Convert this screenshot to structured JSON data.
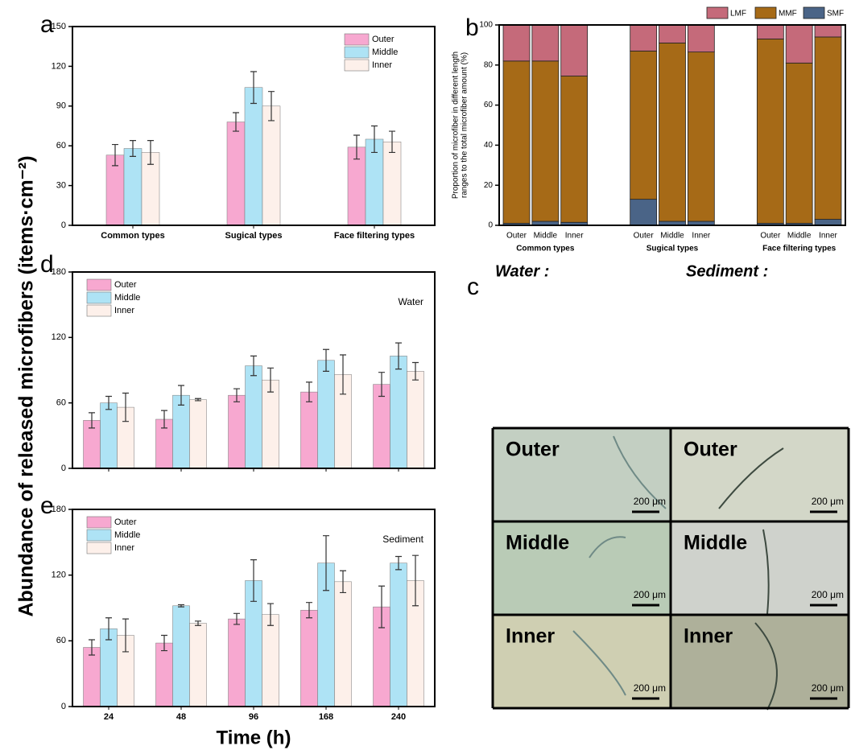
{
  "panel_labels": [
    "a",
    "b",
    "c",
    "d",
    "e"
  ],
  "shared_y_label": "Abundance of released microfibers (items·cm⁻²)",
  "shared_x_label": "Time (h)",
  "chart_data": [
    {
      "type": "grouped_bar",
      "categories": [
        "Common types",
        "Sugical types",
        "Face filtering types"
      ],
      "series": [
        {
          "name": "Outer",
          "color": "#f7a8d0",
          "values": [
            53,
            78,
            59
          ],
          "errors": [
            8,
            7,
            9
          ]
        },
        {
          "name": "Middle",
          "color": "#aee3f5",
          "values": [
            58,
            104,
            65
          ],
          "errors": [
            6,
            12,
            10
          ]
        },
        {
          "name": "Inner",
          "color": "#fdf0ea",
          "values": [
            55,
            90,
            63
          ],
          "errors": [
            9,
            11,
            8
          ]
        }
      ],
      "ylim": [
        0,
        150
      ],
      "yticks": [
        0,
        30,
        60,
        90,
        120,
        150
      ],
      "legend": "upper right"
    },
    {
      "type": "stacked_bar",
      "ylabel": [
        "Proportion of microfiber in different length",
        "ranges to the total microfiber amount (%)"
      ],
      "categories": [
        "Outer",
        "Middle",
        "Inner",
        "Outer",
        "Middle",
        "Inner",
        "Outer",
        "Middle",
        "Inner"
      ],
      "groups": [
        "Common types",
        "Sugical types",
        "Face filtering types"
      ],
      "series": [
        {
          "name": "SMF",
          "color": "#4a6487",
          "values": [
            1,
            2,
            1.5,
            13,
            2,
            2,
            1,
            1,
            3
          ]
        },
        {
          "name": "MMF",
          "color": "#a66a17",
          "values": [
            81,
            80,
            73,
            74,
            89,
            84.5,
            92,
            80,
            91
          ]
        },
        {
          "name": "LMF",
          "color": "#c56a7a",
          "values": [
            18,
            18,
            25.5,
            13,
            9,
            13.5,
            7,
            19,
            6
          ]
        }
      ],
      "ylim": [
        0,
        100
      ],
      "yticks": [
        0,
        20,
        40,
        60,
        80,
        100
      ]
    },
    {
      "type": "grouped_bar",
      "annotation": "Water",
      "categories": [
        "24",
        "48",
        "96",
        "168",
        "240"
      ],
      "series": [
        {
          "name": "Outer",
          "color": "#f7a8d0",
          "values": [
            44,
            45,
            67,
            70,
            77
          ],
          "errors": [
            7,
            8,
            6,
            9,
            11
          ]
        },
        {
          "name": "Middle",
          "color": "#aee3f5",
          "values": [
            60,
            67,
            94,
            99,
            103
          ],
          "errors": [
            6,
            9,
            9,
            10,
            12
          ]
        },
        {
          "name": "Inner",
          "color": "#fdf0ea",
          "values": [
            56,
            63,
            81,
            86,
            89
          ],
          "errors": [
            13,
            1,
            11,
            18,
            8
          ]
        }
      ],
      "ylim": [
        0,
        180
      ],
      "yticks": [
        0,
        60,
        120,
        180
      ],
      "legend": "upper left"
    },
    {
      "type": "grouped_bar",
      "annotation": "Sediment",
      "categories": [
        "24",
        "48",
        "96",
        "168",
        "240"
      ],
      "series": [
        {
          "name": "Outer",
          "color": "#f7a8d0",
          "values": [
            54,
            58,
            80,
            88,
            91
          ],
          "errors": [
            7,
            7,
            5,
            7,
            19
          ]
        },
        {
          "name": "Middle",
          "color": "#aee3f5",
          "values": [
            71,
            92,
            115,
            131,
            131
          ],
          "errors": [
            10,
            1,
            19,
            25,
            6
          ]
        },
        {
          "name": "Inner",
          "color": "#fdf0ea",
          "values": [
            65,
            76,
            84,
            114,
            115
          ],
          "errors": [
            15,
            2,
            10,
            10,
            23
          ]
        }
      ],
      "ylim": [
        0,
        180
      ],
      "yticks": [
        0,
        60,
        120,
        180
      ],
      "legend": "upper left",
      "show_xticklabels": true
    }
  ],
  "micrographs": {
    "column_titles": [
      "Water :",
      "Sediment :"
    ],
    "rows": [
      [
        "Outer",
        "Outer"
      ],
      [
        "Middle",
        "Middle"
      ],
      [
        "Inner",
        "Inner"
      ]
    ],
    "scale_bar": "200 μm"
  }
}
